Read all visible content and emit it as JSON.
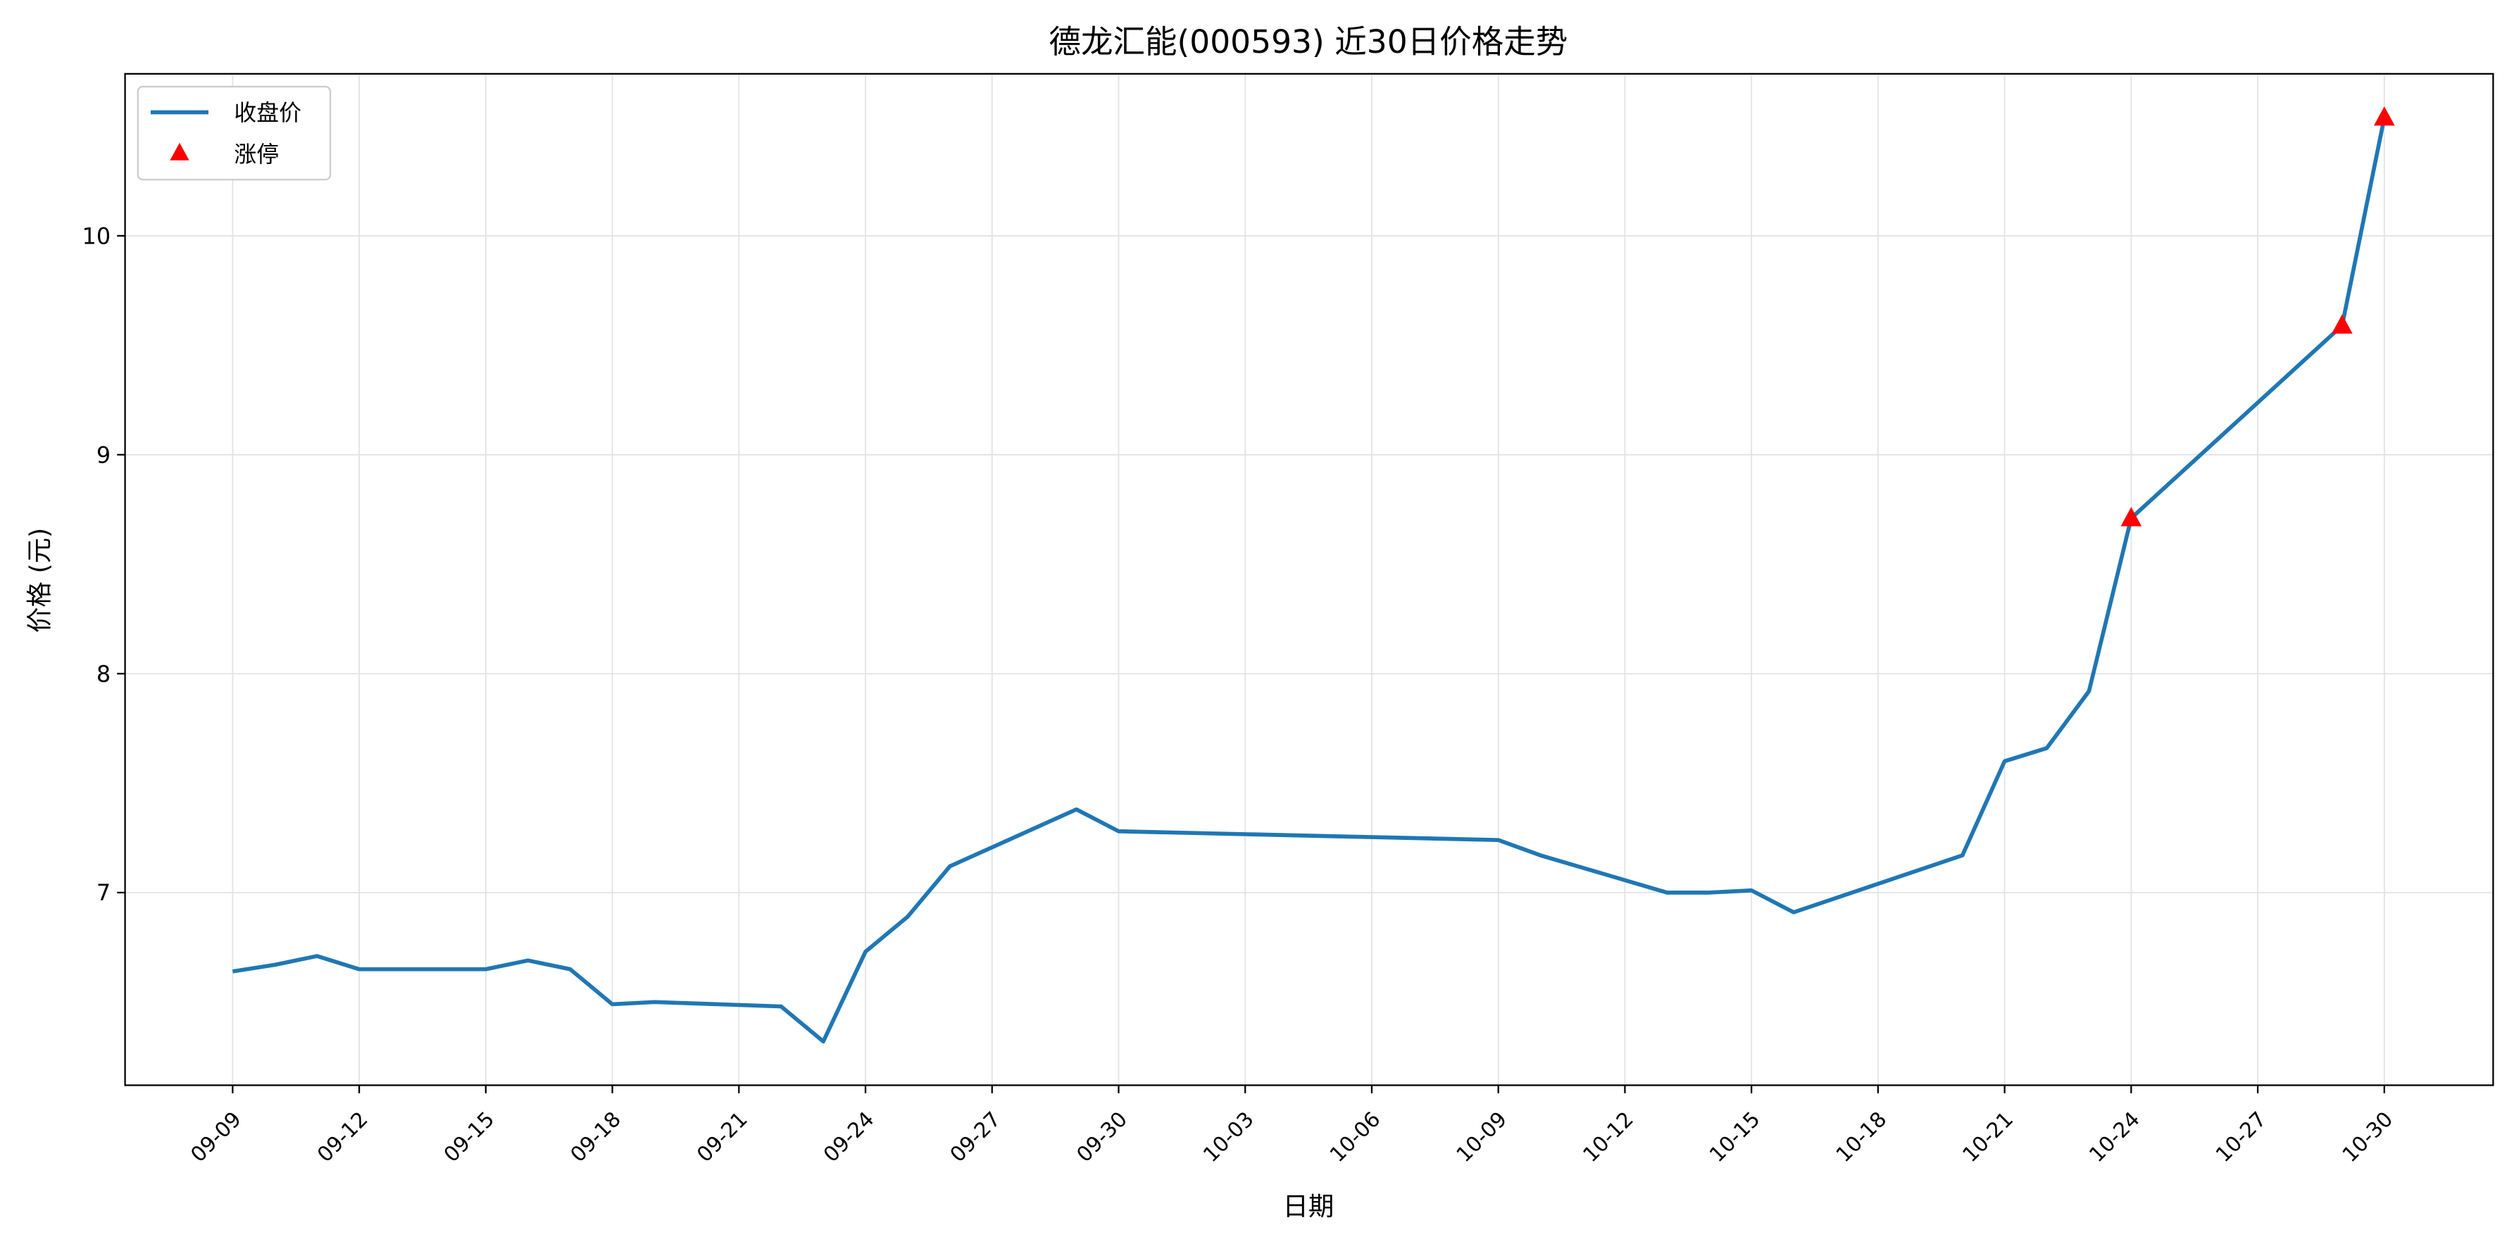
{
  "chart_data": {
    "type": "line",
    "title": "德龙汇能(000593) 近30日价格走势",
    "xlabel": "日期",
    "ylabel": "价格 (元)",
    "x": [
      "09-09",
      "09-10",
      "09-11",
      "09-12",
      "09-15",
      "09-16",
      "09-17",
      "09-18",
      "09-19",
      "09-22",
      "09-23",
      "09-24",
      "09-25",
      "09-26",
      "09-29",
      "09-30",
      "10-09",
      "10-10",
      "10-13",
      "10-14",
      "10-15",
      "10-16",
      "10-20",
      "10-21",
      "10-22",
      "10-23",
      "10-24",
      "10-29",
      "10-30"
    ],
    "series": [
      {
        "name": "收盘价",
        "color": "#1f77b4",
        "values": [
          6.64,
          6.67,
          6.71,
          6.65,
          6.65,
          6.69,
          6.65,
          6.49,
          6.5,
          6.48,
          6.32,
          6.73,
          6.89,
          7.12,
          7.38,
          7.28,
          7.24,
          7.17,
          7.0,
          7.0,
          7.01,
          6.91,
          7.17,
          7.6,
          7.66,
          7.92,
          8.71,
          9.59,
          10.54
        ]
      },
      {
        "name": "涨停",
        "type": "scatter",
        "marker": "triangle",
        "color": "#ff0000",
        "x": [
          "10-24",
          "10-29",
          "10-30"
        ],
        "values": [
          8.71,
          9.59,
          10.54
        ]
      }
    ],
    "xticks": [
      "09-09",
      "09-12",
      "09-15",
      "09-18",
      "09-21",
      "09-24",
      "09-27",
      "09-30",
      "10-03",
      "10-06",
      "10-09",
      "10-12",
      "10-15",
      "10-18",
      "10-21",
      "10-24",
      "10-27",
      "10-30"
    ],
    "yticks": [
      7,
      8,
      9,
      10
    ],
    "ylim": [
      6.12,
      10.74
    ],
    "grid": true,
    "legend": "top-left"
  }
}
